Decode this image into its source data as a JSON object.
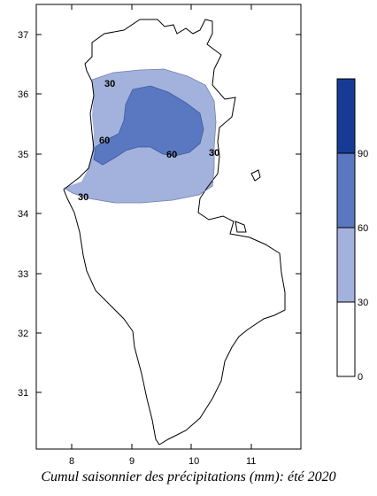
{
  "map": {
    "caption": "Cumul saisonnier des précipitations (mm): été 2020",
    "lon_ticks": [
      "8",
      "9",
      "10",
      "11"
    ],
    "lat_ticks": [
      "37",
      "36",
      "35",
      "34",
      "33",
      "32",
      "31"
    ],
    "contour_labels": [
      "30",
      "60",
      "30",
      "60",
      "30",
      "30"
    ],
    "legend": {
      "breaks": [
        "0",
        "30",
        "60",
        "90"
      ],
      "colors": [
        "#ffffff",
        "#a3b2dc",
        "#5a78c2",
        "#173b95"
      ]
    },
    "fill_colors": {
      "30-60": "#a3b2dc",
      "60-90": "#5a78c2"
    }
  }
}
